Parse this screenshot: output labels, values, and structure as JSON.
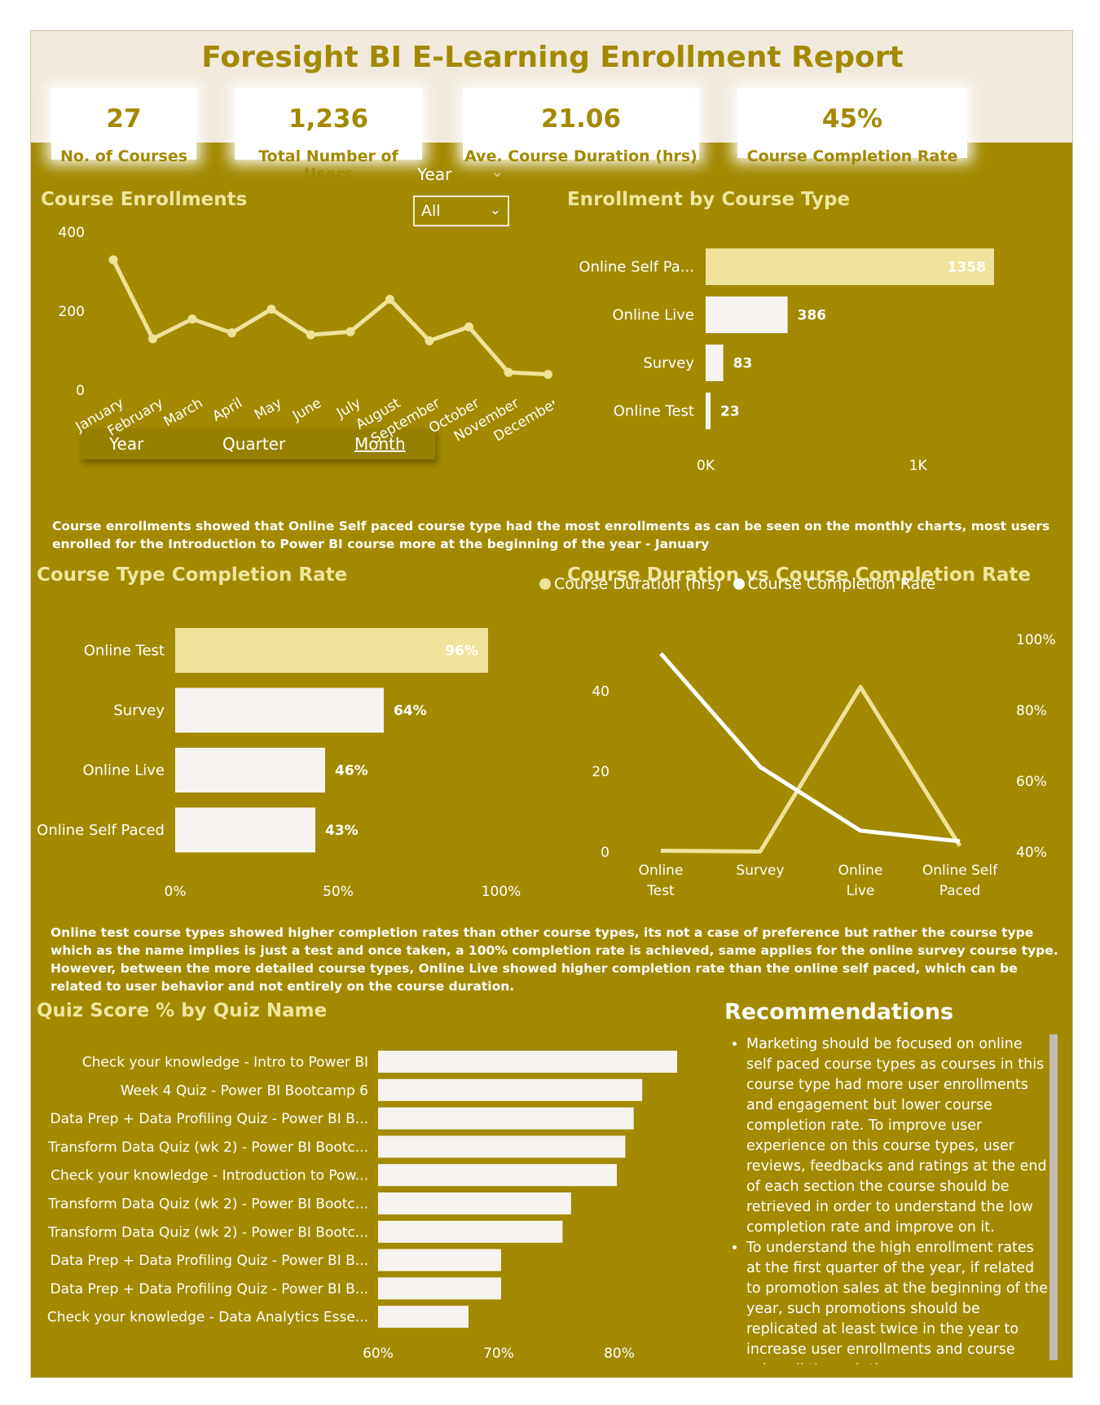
{
  "title": "Foresight BI E-Learning Enrollment Report",
  "kpis": [
    {
      "value": "27",
      "label": "No. of Courses"
    },
    {
      "value": "1,236",
      "label": "Total Number of Users"
    },
    {
      "value": "21.06",
      "label": "Ave. Course Duration (hrs)"
    },
    {
      "value": "45%",
      "label": "Course Completion Rate"
    }
  ],
  "filter": {
    "label": "Year",
    "value": "All"
  },
  "drill_buttons": {
    "year": "Year",
    "quarter": "Quarter",
    "month": "Month"
  },
  "colors": {
    "background": "#a38900",
    "banner": "#f0e9dc",
    "highlight": "#f0e29a",
    "bar": "#f7f3f0",
    "title": "#f0e6a0"
  },
  "narratives": {
    "enrollment": "Course enrollments showed that Online Self paced course type had the most enrollments as can be seen on the monthly charts, most users enrolled for the Introduction to Power BI course more at the beginning of the year - January",
    "completion": "Online test course types showed higher completion rates than other course types, its not a case of preference but rather the course type which as the name implies is just a test and once taken, a 100% completion rate is achieved, same applies for the online survey course type. However, between the more detailed course types, Online Live showed higher completion rate than the online self paced, which can be related to user behavior and not entirely on the course duration."
  },
  "recommendations": {
    "title": "Recommendations",
    "items": [
      "Marketing should be focused on online self paced course types as courses in this course type had more user enrollments and engagement but lower course completion rate. To improve user experience on this course types, user reviews, feedbacks and ratings at the end of each section the course should be retrieved in order to understand the low completion rate and improve on it.",
      "To understand the high enrollment rates at the first quarter of the year, if related to promotion sales at the beginning of the year, such promotions should be replicated at least twice in the year to increase user enrollments and course sales all through the year."
    ]
  },
  "chart_data": [
    {
      "id": "enrollments",
      "type": "line",
      "title": "Course Enrollments",
      "x": [
        "January",
        "February",
        "March",
        "April",
        "May",
        "June",
        "July",
        "August",
        "September",
        "October",
        "November",
        "December"
      ],
      "series": [
        {
          "values": [
            330,
            130,
            180,
            145,
            205,
            140,
            148,
            230,
            125,
            160,
            45,
            40
          ]
        }
      ],
      "ylim": [
        0,
        400
      ],
      "yticks": [
        0,
        200,
        400
      ],
      "grid": false
    },
    {
      "id": "enrollment_by_type",
      "type": "bar",
      "orientation": "horizontal",
      "title": "Enrollment by Course Type",
      "categories": [
        "Online Self Pa...",
        "Online Live",
        "Survey",
        "Online Test"
      ],
      "values": [
        1358,
        386,
        83,
        23
      ],
      "xlim": [
        0,
        1358
      ],
      "xticks": [
        {
          "value": 0,
          "label": "0K"
        },
        {
          "value": 1000,
          "label": "1K"
        }
      ]
    },
    {
      "id": "completion_by_type",
      "type": "bar",
      "orientation": "horizontal",
      "title": "Course Type Completion Rate",
      "categories": [
        "Online Test",
        "Survey",
        "Online Live",
        "Online Self Paced"
      ],
      "values": [
        96,
        64,
        46,
        43
      ],
      "value_labels": [
        "96%",
        "64%",
        "46%",
        "43%"
      ],
      "xlim": [
        0,
        100
      ],
      "xticks": [
        {
          "value": 0,
          "label": "0%"
        },
        {
          "value": 50,
          "label": "50%"
        },
        {
          "value": 100,
          "label": "100%"
        }
      ]
    },
    {
      "id": "duration_vs_completion",
      "type": "line",
      "title": "Course Duration vs Course Completion Rate",
      "x": [
        "Online Test",
        "Survey",
        "Online Live",
        "Online Self Paced"
      ],
      "x_tick_labels": [
        [
          "Online",
          "Test"
        ],
        [
          "Survey"
        ],
        [
          "Online",
          "Live"
        ],
        [
          "Online Self",
          "Paced"
        ]
      ],
      "series": [
        {
          "name": "Course Duration (hrs)",
          "axis": "left",
          "values": [
            0.3,
            0.1,
            41,
            1.5
          ],
          "color": "#f0e29a"
        },
        {
          "name": "Course Completion Rate",
          "axis": "right",
          "values": [
            96,
            64,
            46,
            43
          ],
          "color": "#ffffff"
        }
      ],
      "ylim_left": [
        0,
        50
      ],
      "yticks_left": [
        0,
        20,
        40
      ],
      "ylim_right": [
        40,
        100
      ],
      "yticks_right": [
        {
          "value": 40,
          "label": "40%"
        },
        {
          "value": 60,
          "label": "60%"
        },
        {
          "value": 80,
          "label": "80%"
        },
        {
          "value": 100,
          "label": "100%"
        }
      ],
      "legend": "top-left"
    },
    {
      "id": "quiz_scores",
      "type": "bar",
      "orientation": "horizontal",
      "title": "Quiz Score % by Quiz Name",
      "categories": [
        "Check your knowledge - Intro to Power BI",
        "Week 4 Quiz - Power BI Bootcamp 6",
        "Data Prep + Data Profiling Quiz - Power BI B...",
        "Transform Data Quiz (wk 2) - Power BI Bootc...",
        "Check your knowledge - Introduction to Pow...",
        "Transform Data Quiz (wk 2) - Power BI Bootc...",
        "Transform Data Quiz (wk 2) - Power BI Bootc...",
        "Data Prep + Data Profiling Quiz - Power BI B...",
        "Data Prep + Data Profiling Quiz - Power BI B...",
        "Check your knowledge - Data Analytics Esse..."
      ],
      "values": [
        84.8,
        81.9,
        81.2,
        80.5,
        79.8,
        76.0,
        75.3,
        70.2,
        70.2,
        67.5
      ],
      "xlim": [
        60,
        85
      ],
      "xticks": [
        {
          "value": 60,
          "label": "60%"
        },
        {
          "value": 70,
          "label": "70%"
        },
        {
          "value": 80,
          "label": "80%"
        }
      ]
    }
  ]
}
